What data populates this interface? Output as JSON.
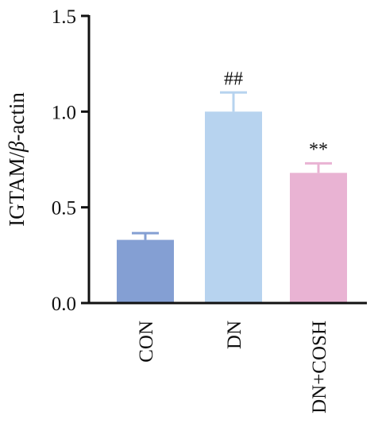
{
  "chart_data": {
    "type": "bar",
    "categories": [
      "CON",
      "DN",
      "DN+COSH"
    ],
    "values": [
      0.33,
      1.0,
      0.68
    ],
    "errors": [
      0.035,
      0.1,
      0.05
    ],
    "annotations": [
      "",
      "##",
      "**"
    ],
    "colors": [
      "#849fd3",
      "#b7d3ef",
      "#e9b3d3"
    ],
    "ylabel_main": "IGTAM/",
    "ylabel_italic": "β",
    "ylabel_end": "-actin",
    "ylim": [
      0,
      1.5
    ],
    "yticks": [
      "0.0",
      "0.5",
      "1.0",
      "1.5"
    ],
    "ytick_values": [
      0,
      0.5,
      1.0,
      1.5
    ],
    "grid": false
  }
}
